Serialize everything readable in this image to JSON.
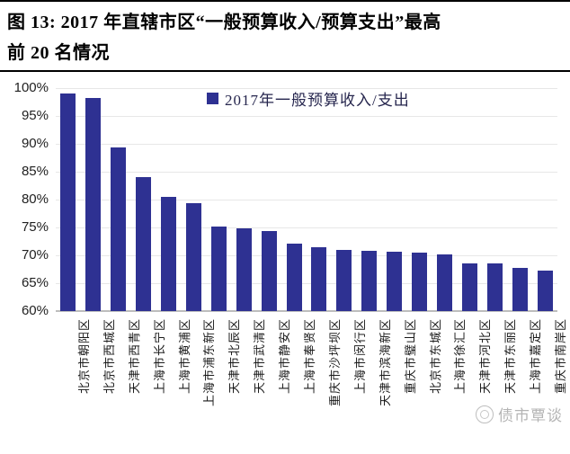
{
  "figure": {
    "title_line1": "图 13: 2017 年直辖市区“一般预算收入/预算支出”最高",
    "title_line2": "前 20 名情况"
  },
  "watermark": {
    "text": "债市覃谈"
  },
  "chart_data": {
    "type": "bar",
    "title": "图 13: 2017 年直辖市区“一般预算收入/预算支出”最高前 20 名情况",
    "legend": [
      "2017年一般预算收入/支出"
    ],
    "legend_position": "top-center",
    "bar_color": "#2e3192",
    "grid": true,
    "ylim": [
      60,
      100
    ],
    "ytick_step": 5,
    "ytick_labels": [
      "100%",
      "95%",
      "90%",
      "85%",
      "80%",
      "75%",
      "70%",
      "65%",
      "60%"
    ],
    "xlabel": "",
    "ylabel": "",
    "categories": [
      "北京市朝阳区",
      "北京市西城区",
      "天津市西青区",
      "上海市长宁区",
      "上海市黄浦区",
      "上海市浦东新区",
      "天津市北辰区",
      "天津市武清区",
      "上海市静安区",
      "上海市奉贤区",
      "重庆市沙坪坝区",
      "上海市闵行区",
      "天津市滨海新区",
      "重庆市璧山区",
      "北京市东城区",
      "上海市徐汇区",
      "天津市河北区",
      "天津市东丽区",
      "上海市嘉定区",
      "重庆市南岸区"
    ],
    "values": [
      99.1,
      98.2,
      89.3,
      84.1,
      80.5,
      79.4,
      75.1,
      74.9,
      74.4,
      72.1,
      71.4,
      70.9,
      70.8,
      70.6,
      70.5,
      70.1,
      68.6,
      68.5,
      67.8,
      67.3
    ],
    "unit": "%"
  }
}
